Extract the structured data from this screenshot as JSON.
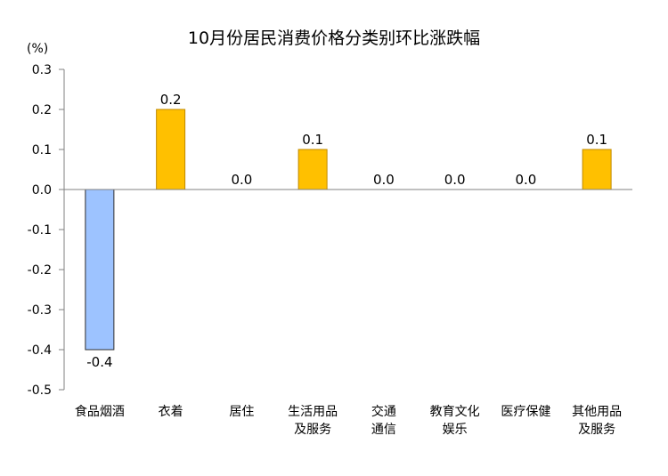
{
  "chart_data": {
    "type": "bar",
    "title": "10月份居民消费价格分类别环比涨跌幅",
    "unit": "(%)",
    "categories": [
      [
        "食品烟酒"
      ],
      [
        "衣着"
      ],
      [
        "居住"
      ],
      [
        "生活用品",
        "及服务"
      ],
      [
        "交通",
        "通信"
      ],
      [
        "教育文化",
        "娱乐"
      ],
      [
        "医疗保健"
      ],
      [
        "其他用品",
        "及服务"
      ]
    ],
    "values": [
      -0.4,
      0.2,
      0.0,
      0.1,
      0.0,
      0.0,
      0.0,
      0.1
    ],
    "value_labels": [
      "-0.4",
      "0.2",
      "0.0",
      "0.1",
      "0.0",
      "0.0",
      "0.0",
      "0.1"
    ],
    "yticks": [
      "0.3",
      "0.2",
      "0.1",
      "0.0",
      "-0.1",
      "-0.2",
      "-0.3",
      "-0.4",
      "-0.5"
    ],
    "ylim": [
      -0.5,
      0.3
    ],
    "grid": false,
    "legend": "none",
    "colors": {
      "positive": "#FFC000",
      "positive_border": "#C08A00",
      "negative": "#9DC3FF",
      "negative_border": "#2F2F2F",
      "axis": "#808080"
    }
  }
}
